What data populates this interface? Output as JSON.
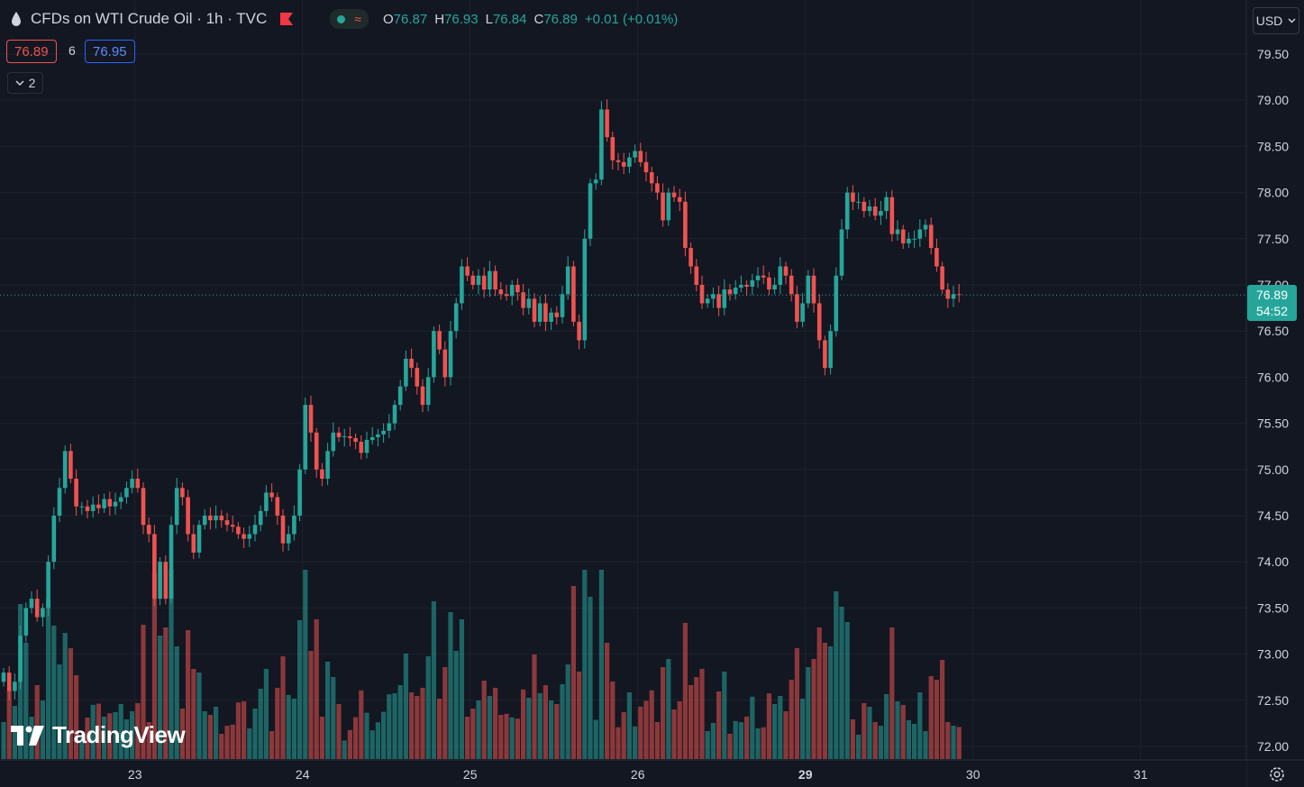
{
  "header": {
    "symbol_title": "CFDs on WTI Crude Oil · 1h · TVC",
    "ohlc": {
      "open_label": "O",
      "open": "76.87",
      "high_label": "H",
      "high": "76.93",
      "low_label": "L",
      "low": "76.84",
      "close_label": "C",
      "close": "76.89",
      "change": "+0.01 (+0.01%)"
    },
    "icons": [
      "drop-icon",
      "flag-icon",
      "status-dot-icon",
      "wave-icon"
    ]
  },
  "trade": {
    "sell_price": "76.89",
    "spread": "6",
    "buy_price": "76.95"
  },
  "indicators": {
    "collapse_count": "2"
  },
  "price_scale": {
    "currency": "USD",
    "last_price": "76.89",
    "countdown": "54:52"
  },
  "branding": {
    "logo_text": "TradingView"
  },
  "colors": {
    "up": "#26a69a",
    "down": "#ef5350",
    "background": "#131722",
    "grid": "#1e222d",
    "text": "#d1d4dc"
  },
  "chart_data": {
    "type": "candlestick",
    "y_ticks": [
      "79.50",
      "79.00",
      "78.50",
      "78.00",
      "77.50",
      "77.00",
      "76.50",
      "76.00",
      "75.50",
      "75.00",
      "74.50",
      "74.00",
      "73.50",
      "73.00",
      "72.50",
      "72.00"
    ],
    "ylim": [
      71.9,
      79.65
    ],
    "x_ticks": [
      "23",
      "24",
      "25",
      "26",
      "29",
      "30",
      "31"
    ],
    "x_tick_bars": [
      23.5,
      53.5,
      83.5,
      113.5,
      143.5,
      173.5,
      203.5
    ],
    "last_price": 76.89,
    "closes": [
      72.8,
      72.6,
      72.7,
      73.2,
      73.5,
      73.6,
      73.4,
      73.5,
      74.0,
      74.5,
      74.8,
      75.2,
      74.9,
      74.6,
      74.6,
      74.55,
      74.62,
      74.58,
      74.68,
      74.6,
      74.65,
      74.7,
      74.8,
      74.9,
      74.8,
      74.4,
      74.3,
      73.6,
      74.0,
      73.6,
      74.4,
      74.8,
      74.7,
      74.3,
      74.1,
      74.4,
      74.5,
      74.45,
      74.5,
      74.45,
      74.4,
      74.38,
      74.3,
      74.25,
      74.3,
      74.4,
      74.55,
      74.75,
      74.7,
      74.5,
      74.2,
      74.3,
      74.5,
      75.0,
      75.7,
      75.4,
      75.0,
      74.9,
      75.2,
      75.4,
      75.35,
      75.36,
      75.34,
      75.3,
      75.18,
      75.32,
      75.35,
      75.38,
      75.42,
      75.5,
      75.7,
      75.9,
      76.2,
      76.1,
      75.9,
      75.7,
      76.0,
      76.5,
      76.3,
      76.0,
      76.5,
      76.8,
      77.2,
      77.1,
      77.0,
      77.1,
      76.95,
      77.15,
      76.95,
      76.9,
      76.88,
      77.0,
      76.92,
      76.75,
      76.85,
      76.6,
      76.8,
      76.6,
      76.7,
      76.65,
      76.9,
      77.2,
      76.6,
      76.4,
      77.5,
      78.1,
      78.14,
      78.9,
      78.6,
      78.35,
      78.33,
      78.28,
      78.38,
      78.45,
      78.33,
      78.22,
      78.1,
      78.0,
      77.7,
      78.0,
      77.95,
      77.9,
      77.4,
      77.2,
      77.0,
      76.8,
      76.85,
      76.9,
      76.75,
      76.95,
      76.9,
      76.97,
      77.0,
      76.98,
      77.05,
      77.1,
      77.08,
      76.95,
      77.0,
      77.2,
      77.1,
      76.9,
      76.6,
      76.8,
      77.1,
      76.8,
      76.4,
      76.1,
      76.5,
      77.1,
      77.6,
      78.0,
      77.9,
      77.9,
      77.8,
      77.85,
      77.75,
      77.8,
      77.95,
      77.55,
      77.6,
      77.45,
      77.5,
      77.5,
      77.6,
      77.65,
      77.4,
      77.2,
      76.95,
      76.85,
      76.9,
      76.89
    ]
  }
}
